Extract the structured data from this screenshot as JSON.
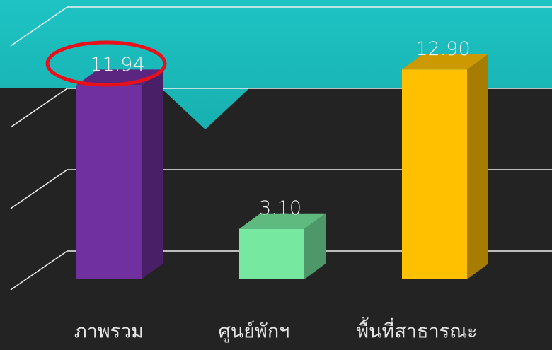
{
  "chart_data": {
    "type": "bar3d",
    "categories": [
      "ภาพรวม",
      "ศูนย์พักฯ",
      "พื้นที่สาธารณะ"
    ],
    "values": [
      11.94,
      3.1,
      12.9
    ],
    "value_labels": [
      "11.94",
      "3.10",
      "12.90"
    ],
    "colors": [
      "#7030a0",
      "#77e8a0",
      "#ffc000"
    ],
    "ylim": [
      0,
      15
    ],
    "yticks": [
      0,
      5,
      10,
      15
    ],
    "grid": true
  }
}
